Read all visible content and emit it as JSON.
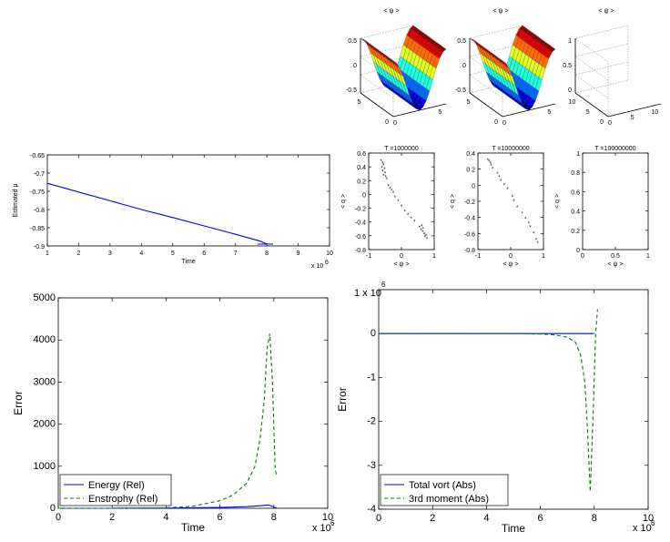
{
  "chart_data": [
    {
      "id": "surf1",
      "type": "other",
      "title": "< ψ >",
      "z_ticks": [
        "0.5",
        "0",
        "-0.5"
      ],
      "x_ticks": [
        "0",
        "5"
      ],
      "y_ticks": [
        "5",
        "0"
      ]
    },
    {
      "id": "surf2",
      "type": "other",
      "title": "< ψ >",
      "z_ticks": [
        "0.5",
        "0",
        "-0.5"
      ],
      "x_ticks": [
        "0",
        "5"
      ],
      "y_ticks": [
        "5",
        "0"
      ]
    },
    {
      "id": "surf3",
      "type": "other",
      "title": "< ψ >",
      "z_ticks": [
        "1",
        "0.5",
        "0"
      ],
      "x_ticks": [
        "0",
        "5",
        "10"
      ],
      "y_ticks": [
        "10",
        "5",
        "0"
      ]
    },
    {
      "id": "mu",
      "type": "line",
      "title": "",
      "xlabel": "Time",
      "ylabel": "Estimated μ",
      "x_multiplier": "x 10",
      "x_multiplier_exp": "6",
      "xlim": [
        1,
        10
      ],
      "ylim": [
        -0.9,
        -0.65
      ],
      "x_ticks": [
        1,
        2,
        3,
        4,
        5,
        6,
        7,
        8,
        9,
        10
      ],
      "y_ticks": [
        "-0.65",
        "-0.7",
        "-0.75",
        "-0.8",
        "-0.85",
        "-0.9"
      ],
      "y_tick_values": [
        -0.65,
        -0.7,
        -0.75,
        -0.8,
        -0.85,
        -0.9
      ],
      "series": [
        {
          "color": "#0000ff",
          "x": [
            1,
            2,
            3,
            4,
            5,
            6,
            7,
            7.8,
            8.0
          ],
          "y": [
            -0.728,
            -0.752,
            -0.776,
            -0.8,
            -0.822,
            -0.845,
            -0.868,
            -0.887,
            -0.895
          ]
        },
        {
          "color": "#0000ff",
          "x": [
            7.7,
            8.2
          ],
          "y": [
            -0.895,
            -0.895
          ]
        }
      ]
    },
    {
      "id": "sc1",
      "type": "scatter",
      "title": "T =1000000",
      "xlabel": "< ψ >",
      "ylabel": "< q >",
      "xlim": [
        -1,
        1
      ],
      "ylim": [
        -0.8,
        0.6
      ],
      "x_ticks": [
        "-1",
        "0",
        "1"
      ],
      "x_tick_values": [
        -1,
        0,
        1
      ],
      "y_ticks": [
        "0.6",
        "0.4",
        "0.2",
        "0",
        "-0.2",
        "-0.4",
        "-0.6",
        "-0.8"
      ],
      "y_tick_values": [
        0.6,
        0.4,
        0.2,
        0,
        -0.2,
        -0.4,
        -0.6,
        -0.8
      ],
      "points": [
        [
          -0.62,
          0.48
        ],
        [
          -0.58,
          0.45
        ],
        [
          -0.55,
          0.42
        ],
        [
          -0.6,
          0.38
        ],
        [
          -0.52,
          0.36
        ],
        [
          -0.57,
          0.33
        ],
        [
          -0.5,
          0.3
        ],
        [
          -0.54,
          0.27
        ],
        [
          -0.48,
          0.25
        ],
        [
          -0.45,
          0.22
        ],
        [
          -0.4,
          0.12
        ],
        [
          -0.35,
          0.08
        ],
        [
          -0.3,
          0.05
        ],
        [
          -0.25,
          0.02
        ],
        [
          -0.2,
          -0.05
        ],
        [
          -0.1,
          -0.1
        ],
        [
          0.0,
          -0.18
        ],
        [
          0.1,
          -0.25
        ],
        [
          0.2,
          -0.3
        ],
        [
          0.3,
          -0.35
        ],
        [
          0.4,
          -0.4
        ],
        [
          0.55,
          -0.48
        ],
        [
          0.6,
          -0.52
        ],
        [
          0.65,
          -0.55
        ],
        [
          0.7,
          -0.58
        ],
        [
          0.72,
          -0.62
        ],
        [
          0.75,
          -0.6
        ],
        [
          0.78,
          -0.65
        ],
        [
          0.66,
          -0.5
        ],
        [
          0.62,
          -0.46
        ]
      ]
    },
    {
      "id": "sc2",
      "type": "scatter",
      "title": "T =10000000",
      "xlabel": "< ψ >",
      "ylabel": "< q >",
      "xlim": [
        -1,
        1
      ],
      "ylim": [
        -0.8,
        0.4
      ],
      "x_ticks": [
        "-1",
        "0",
        "1"
      ],
      "x_tick_values": [
        -1,
        0,
        1
      ],
      "y_ticks": [
        "0.4",
        "0.2",
        "0",
        "-0.2",
        "-0.4",
        "-0.6",
        "-0.8"
      ],
      "y_tick_values": [
        0.4,
        0.2,
        0,
        -0.2,
        -0.4,
        -0.6,
        -0.8
      ],
      "points": [
        [
          -0.7,
          0.31
        ],
        [
          -0.66,
          0.29
        ],
        [
          -0.62,
          0.27
        ],
        [
          -0.6,
          0.24
        ],
        [
          -0.55,
          0.2
        ],
        [
          -0.4,
          0.14
        ],
        [
          -0.35,
          0.1
        ],
        [
          -0.3,
          0.05
        ],
        [
          -0.2,
          0.0
        ],
        [
          -0.1,
          -0.05
        ],
        [
          0.05,
          -0.15
        ],
        [
          0.1,
          -0.2
        ],
        [
          0.2,
          -0.28
        ],
        [
          0.35,
          -0.35
        ],
        [
          0.45,
          -0.42
        ],
        [
          0.55,
          -0.48
        ],
        [
          0.6,
          -0.52
        ],
        [
          0.7,
          -0.6
        ],
        [
          0.78,
          -0.68
        ],
        [
          0.82,
          -0.72
        ]
      ]
    },
    {
      "id": "sc3",
      "type": "scatter",
      "title": "T =100000000",
      "xlabel": "< ψ >",
      "ylabel": "< q >",
      "xlim": [
        0,
        1
      ],
      "ylim": [
        0,
        1
      ],
      "x_ticks": [
        "0",
        "0.5",
        "1"
      ],
      "x_tick_values": [
        0,
        0.5,
        1
      ],
      "y_ticks": [
        "1",
        "0.8",
        "0.6",
        "0.4",
        "0.2",
        "0"
      ],
      "y_tick_values": [
        1,
        0.8,
        0.6,
        0.4,
        0.2,
        0
      ],
      "points": []
    },
    {
      "id": "err",
      "type": "line",
      "title": "",
      "xlabel": "Time",
      "ylabel": "Error",
      "x_multiplier": "x 10",
      "x_multiplier_exp": "6",
      "xlim": [
        0,
        10
      ],
      "ylim": [
        0,
        5000
      ],
      "x_ticks": [
        "0",
        "2",
        "4",
        "6",
        "8",
        "10"
      ],
      "x_tick_values": [
        0,
        2,
        4,
        6,
        8,
        10
      ],
      "y_ticks": [
        "5000",
        "4000",
        "3000",
        "2000",
        "1000",
        "0"
      ],
      "y_tick_values": [
        5000,
        4000,
        3000,
        2000,
        1000,
        0
      ],
      "legend": [
        "Energy (Rel)",
        "Enstrophy (Rel)"
      ],
      "series": [
        {
          "name": "Energy (Rel)",
          "color": "#0000ff",
          "dash": "",
          "x": [
            0,
            2,
            4,
            6,
            7,
            7.5,
            7.8,
            8.0,
            8.1
          ],
          "y": [
            0,
            0,
            5,
            20,
            40,
            60,
            80,
            30,
            10
          ]
        },
        {
          "name": "Enstrophy (Rel)",
          "color": "#008000",
          "dash": "4 3",
          "x": [
            0,
            2,
            4,
            5,
            6,
            6.5,
            7,
            7.3,
            7.5,
            7.65,
            7.75,
            7.85,
            7.95,
            8.05,
            8.1
          ],
          "y": [
            0,
            0,
            10,
            50,
            180,
            320,
            600,
            1000,
            1700,
            2600,
            3800,
            4150,
            3000,
            900,
            800
          ]
        }
      ]
    },
    {
      "id": "mom",
      "type": "line",
      "title": "",
      "xlabel": "Time",
      "ylabel": "Error",
      "y_multiplier": "1 x 10",
      "y_multiplier_exp": "6",
      "x_multiplier": "x 10",
      "x_multiplier_exp": "6",
      "xlim": [
        0,
        10
      ],
      "ylim": [
        -4,
        1
      ],
      "x_ticks": [
        "0",
        "2",
        "4",
        "6",
        "8",
        "10"
      ],
      "x_tick_values": [
        0,
        2,
        4,
        6,
        8,
        10
      ],
      "y_ticks": [
        "0",
        "-1",
        "-2",
        "-3",
        "-4"
      ],
      "y_tick_values": [
        0,
        -1,
        -2,
        -3,
        -4
      ],
      "legend": [
        "Total vort (Abs)",
        "3rd moment (Abs)"
      ],
      "series": [
        {
          "name": "Total vort (Abs)",
          "color": "#0000ff",
          "dash": "",
          "x": [
            0,
            2,
            4,
            6,
            8.0
          ],
          "y": [
            0,
            0,
            0,
            0,
            0
          ]
        },
        {
          "name": "3rd moment (Abs)",
          "color": "#008000",
          "dash": "4 3",
          "x": [
            0,
            4,
            5,
            6,
            6.5,
            7,
            7.3,
            7.5,
            7.65,
            7.75,
            7.85,
            7.95,
            8.05,
            8.12
          ],
          "y": [
            0,
            0,
            0,
            -0.01,
            -0.03,
            -0.08,
            -0.2,
            -0.5,
            -1.1,
            -2.2,
            -3.6,
            -2.0,
            0.0,
            0.55
          ]
        }
      ]
    }
  ]
}
